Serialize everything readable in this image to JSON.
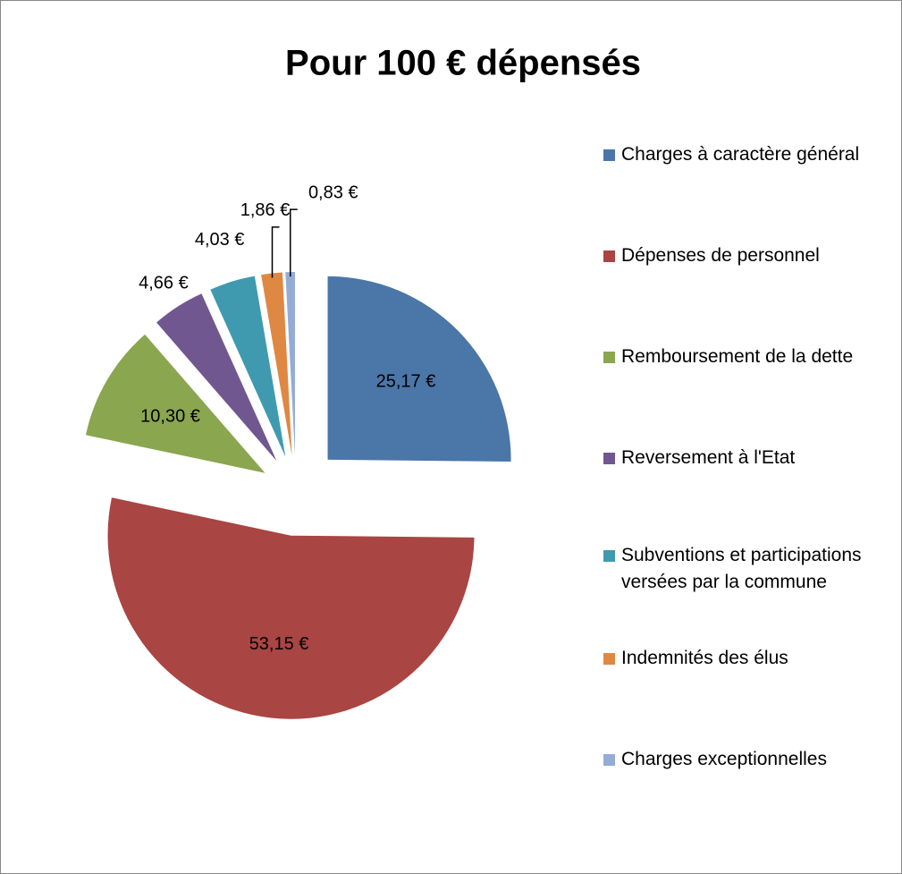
{
  "chart_data": {
    "type": "pie",
    "title": "Pour 100 € dépensés",
    "categories": [
      "Charges à caractère général",
      "Dépenses de personnel",
      "Remboursement de la dette",
      "Reversement à l'Etat",
      "Subventions et participations  versées par la commune",
      "Indemnités des élus",
      "Charges exceptionnelles"
    ],
    "values": [
      25.17,
      53.15,
      10.3,
      4.66,
      4.03,
      1.86,
      0.83
    ],
    "value_labels": [
      "25,17 €",
      "53,15 €",
      "10,30 €",
      "4,66 €",
      "4,03 €",
      "1,86 €",
      "0,83 €"
    ],
    "colors": [
      "#4a76a8",
      "#a94543",
      "#8aa64f",
      "#71578f",
      "#3f9ab0",
      "#de8843",
      "#94acd6"
    ],
    "legend": "right"
  }
}
